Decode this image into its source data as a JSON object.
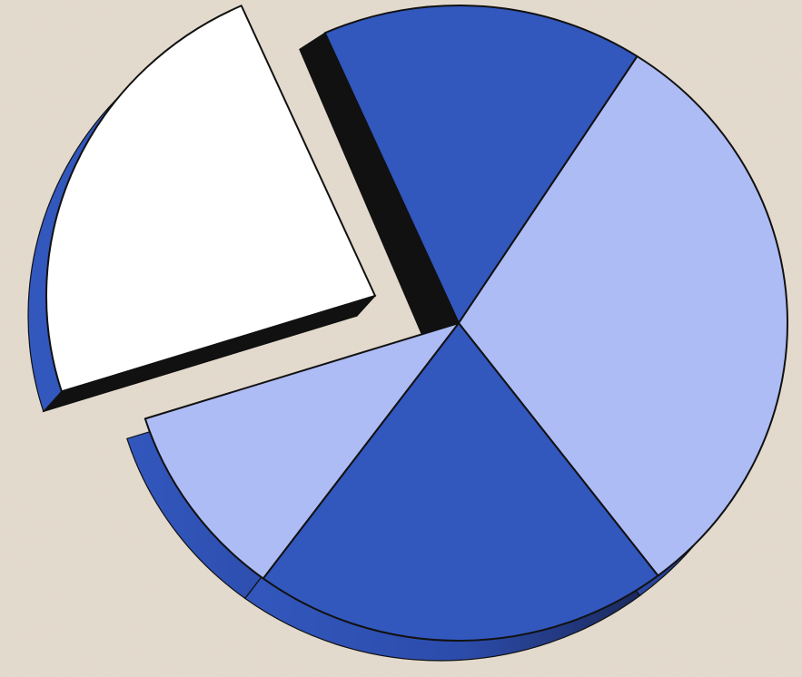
{
  "chart_data": {
    "type": "pie",
    "title": "",
    "legend": "none",
    "style": "3d-exploded",
    "slices": [
      {
        "value": 15.8,
        "color": "#3257bd",
        "exploded": false
      },
      {
        "value": 30.5,
        "color": "#aebcf6",
        "exploded": false
      },
      {
        "value": 20.5,
        "color": "#3257bd",
        "exploded": false
      },
      {
        "value": 10.0,
        "color": "#aebcf6",
        "exploded": false
      },
      {
        "value": 23.2,
        "color": "#ffffff",
        "exploded": true
      }
    ]
  },
  "colors": {
    "background": "#e6ddd0",
    "edge_dark": "#111111",
    "side_blue": "#3257bd",
    "side_blue_deep": "#1b2a5e",
    "outline": "#111111"
  }
}
